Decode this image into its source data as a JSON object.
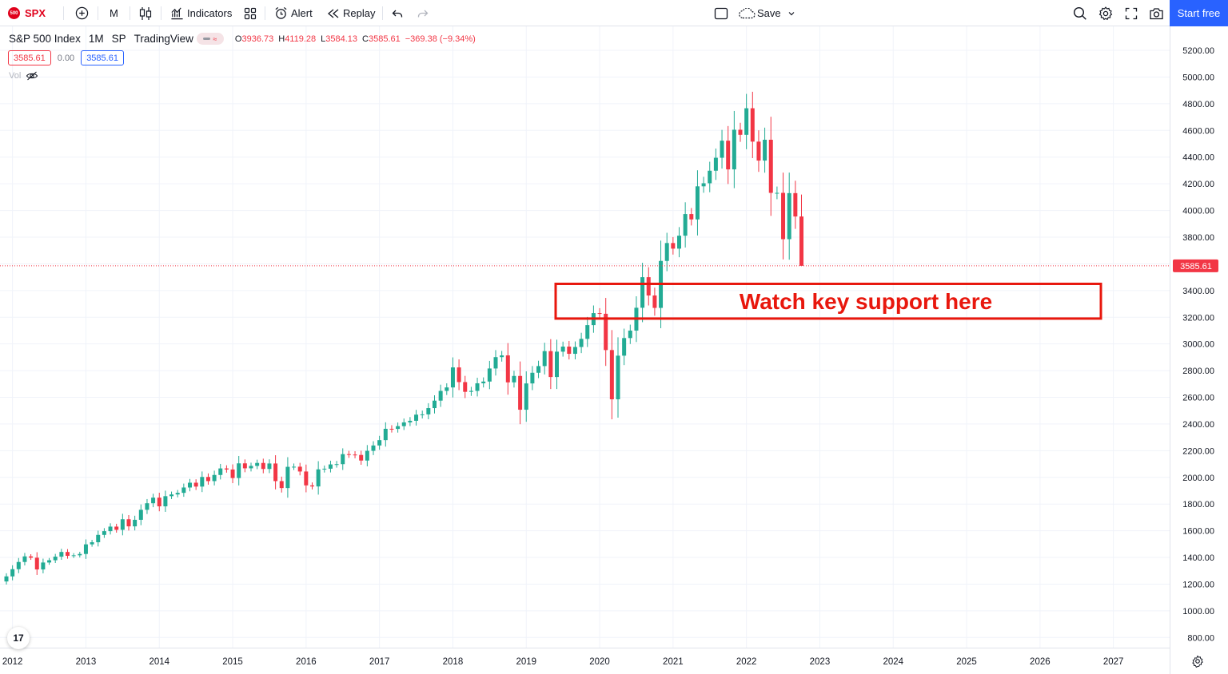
{
  "toolbar": {
    "symbol": "SPX",
    "symbol_logo_text": "500",
    "interval": "M",
    "indicators_label": "Indicators",
    "alert_label": "Alert",
    "replay_label": "Replay",
    "save_label": "Save",
    "start_free_label": "Start free"
  },
  "legend": {
    "title": "S&P 500 Index",
    "interval": "1M",
    "exchange": "SP",
    "source": "TradingView",
    "open_key": "O",
    "open": "3936.73",
    "high_key": "H",
    "high": "4119.28",
    "low_key": "L",
    "low": "3584.13",
    "close_key": "C",
    "close": "3585.61",
    "change": "−369.38 (−9.34%)",
    "value_red": "3585.61",
    "value_zero": "0.00",
    "value_blue": "3585.61",
    "vol_label": "Vol"
  },
  "logo_text": "17",
  "colors": {
    "up": "#22ab94",
    "down": "#f23645",
    "accent": "#2962ff",
    "annotation": "#e8170d"
  },
  "chart_data": {
    "type": "candlestick",
    "title": "S&P 500 Index",
    "interval": "1M",
    "ylim": [
      730,
      5290
    ],
    "y_ticks": [
      800,
      1000,
      1200,
      1400,
      1600,
      1800,
      2000,
      2200,
      2400,
      2600,
      2800,
      3000,
      3200,
      3400,
      3600,
      3800,
      4000,
      4200,
      4400,
      4600,
      4800,
      5000,
      5200
    ],
    "x_ticks": [
      "2012",
      "2013",
      "2014",
      "2015",
      "2016",
      "2017",
      "2018",
      "2019",
      "2020",
      "2021",
      "2022",
      "2023",
      "2024",
      "2025",
      "2026",
      "2027"
    ],
    "first_bar": "2011-12",
    "grid": true,
    "last_price": "3585.61",
    "last_price_value": 3585.61,
    "annotation": {
      "text": "Watch key support here",
      "y_range": [
        3190,
        3450
      ]
    },
    "closes": [
      1258,
      1312,
      1366,
      1408,
      1398,
      1310,
      1362,
      1379,
      1406,
      1441,
      1412,
      1416,
      1426,
      1498,
      1514,
      1569,
      1597,
      1631,
      1607,
      1686,
      1633,
      1682,
      1757,
      1806,
      1848,
      1783,
      1859,
      1872,
      1884,
      1924,
      1960,
      1931,
      2003,
      1972,
      2018,
      2067,
      2059,
      1995,
      2105,
      2068,
      2086,
      2108,
      2063,
      2104,
      1972,
      1920,
      2079,
      2080,
      2044,
      1940,
      1932,
      2060,
      2065,
      2097,
      2099,
      2174,
      2171,
      2168,
      2126,
      2199,
      2239,
      2279,
      2364,
      2363,
      2384,
      2412,
      2424,
      2470,
      2472,
      2519,
      2575,
      2648,
      2674,
      2824,
      2714,
      2641,
      2648,
      2705,
      2718,
      2816,
      2901,
      2914,
      2712,
      2760,
      2507,
      2704,
      2784,
      2834,
      2946,
      2752,
      2942,
      2980,
      2926,
      2977,
      3038,
      3141,
      3231,
      3226,
      2954,
      2585,
      2912,
      3044,
      3100,
      3271,
      3500,
      3363,
      3270,
      3622,
      3756,
      3714,
      3811,
      3973,
      3933,
      4181,
      4204,
      4298,
      4395,
      4523,
      4308,
      4605,
      4567,
      4766,
      4516,
      4374,
      4530,
      4132,
      4132,
      3785,
      4130,
      3955,
      3585.61
    ]
  }
}
